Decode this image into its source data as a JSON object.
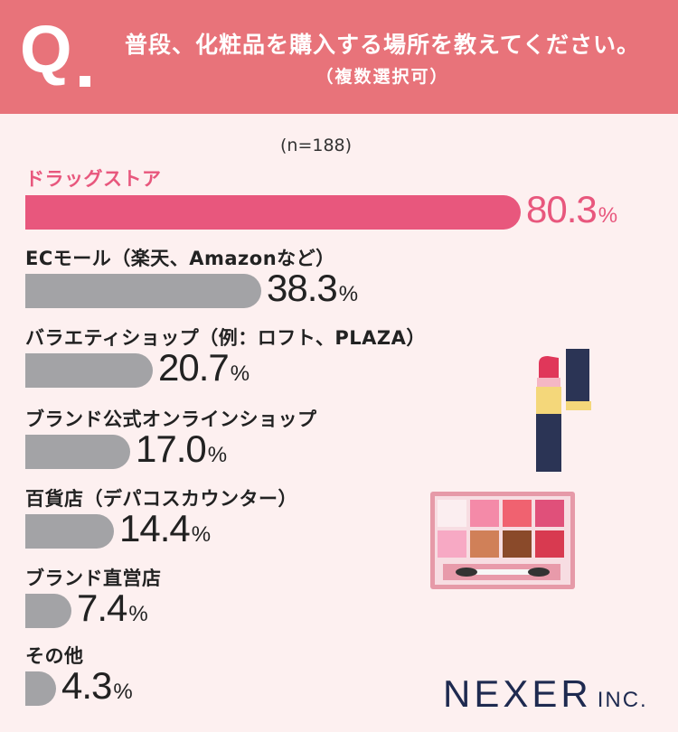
{
  "question": {
    "mark": "Q",
    "title": "普段、化粧品を購入する場所を教えてください。",
    "subtitle": "（複数選択可）"
  },
  "chart_data": {
    "type": "bar",
    "orientation": "horizontal",
    "note": "(n=188)",
    "unit": "%",
    "categories": [
      "ドラッグストア",
      "ECモール（楽天、Amazonなど）",
      "バラエティショップ（例：ロフト、PLAZA）",
      "ブランド公式オンラインショップ",
      "百貨店（デパコスカウンター）",
      "ブランド直営店",
      "その他"
    ],
    "values": [
      80.3,
      38.3,
      20.7,
      17.0,
      14.4,
      7.4,
      4.3
    ],
    "value_labels": [
      "80.3",
      "38.3",
      "20.7",
      "17.0",
      "14.4",
      "7.4",
      "4.3"
    ],
    "colors": {
      "highlight": "#e8577d",
      "default": "#a3a3a6"
    },
    "highlight_index": 0
  },
  "brand": {
    "name": "NEXER",
    "suffix": "INC."
  },
  "colors": {
    "header": "#e8737a",
    "background": "#fdf0f0"
  }
}
